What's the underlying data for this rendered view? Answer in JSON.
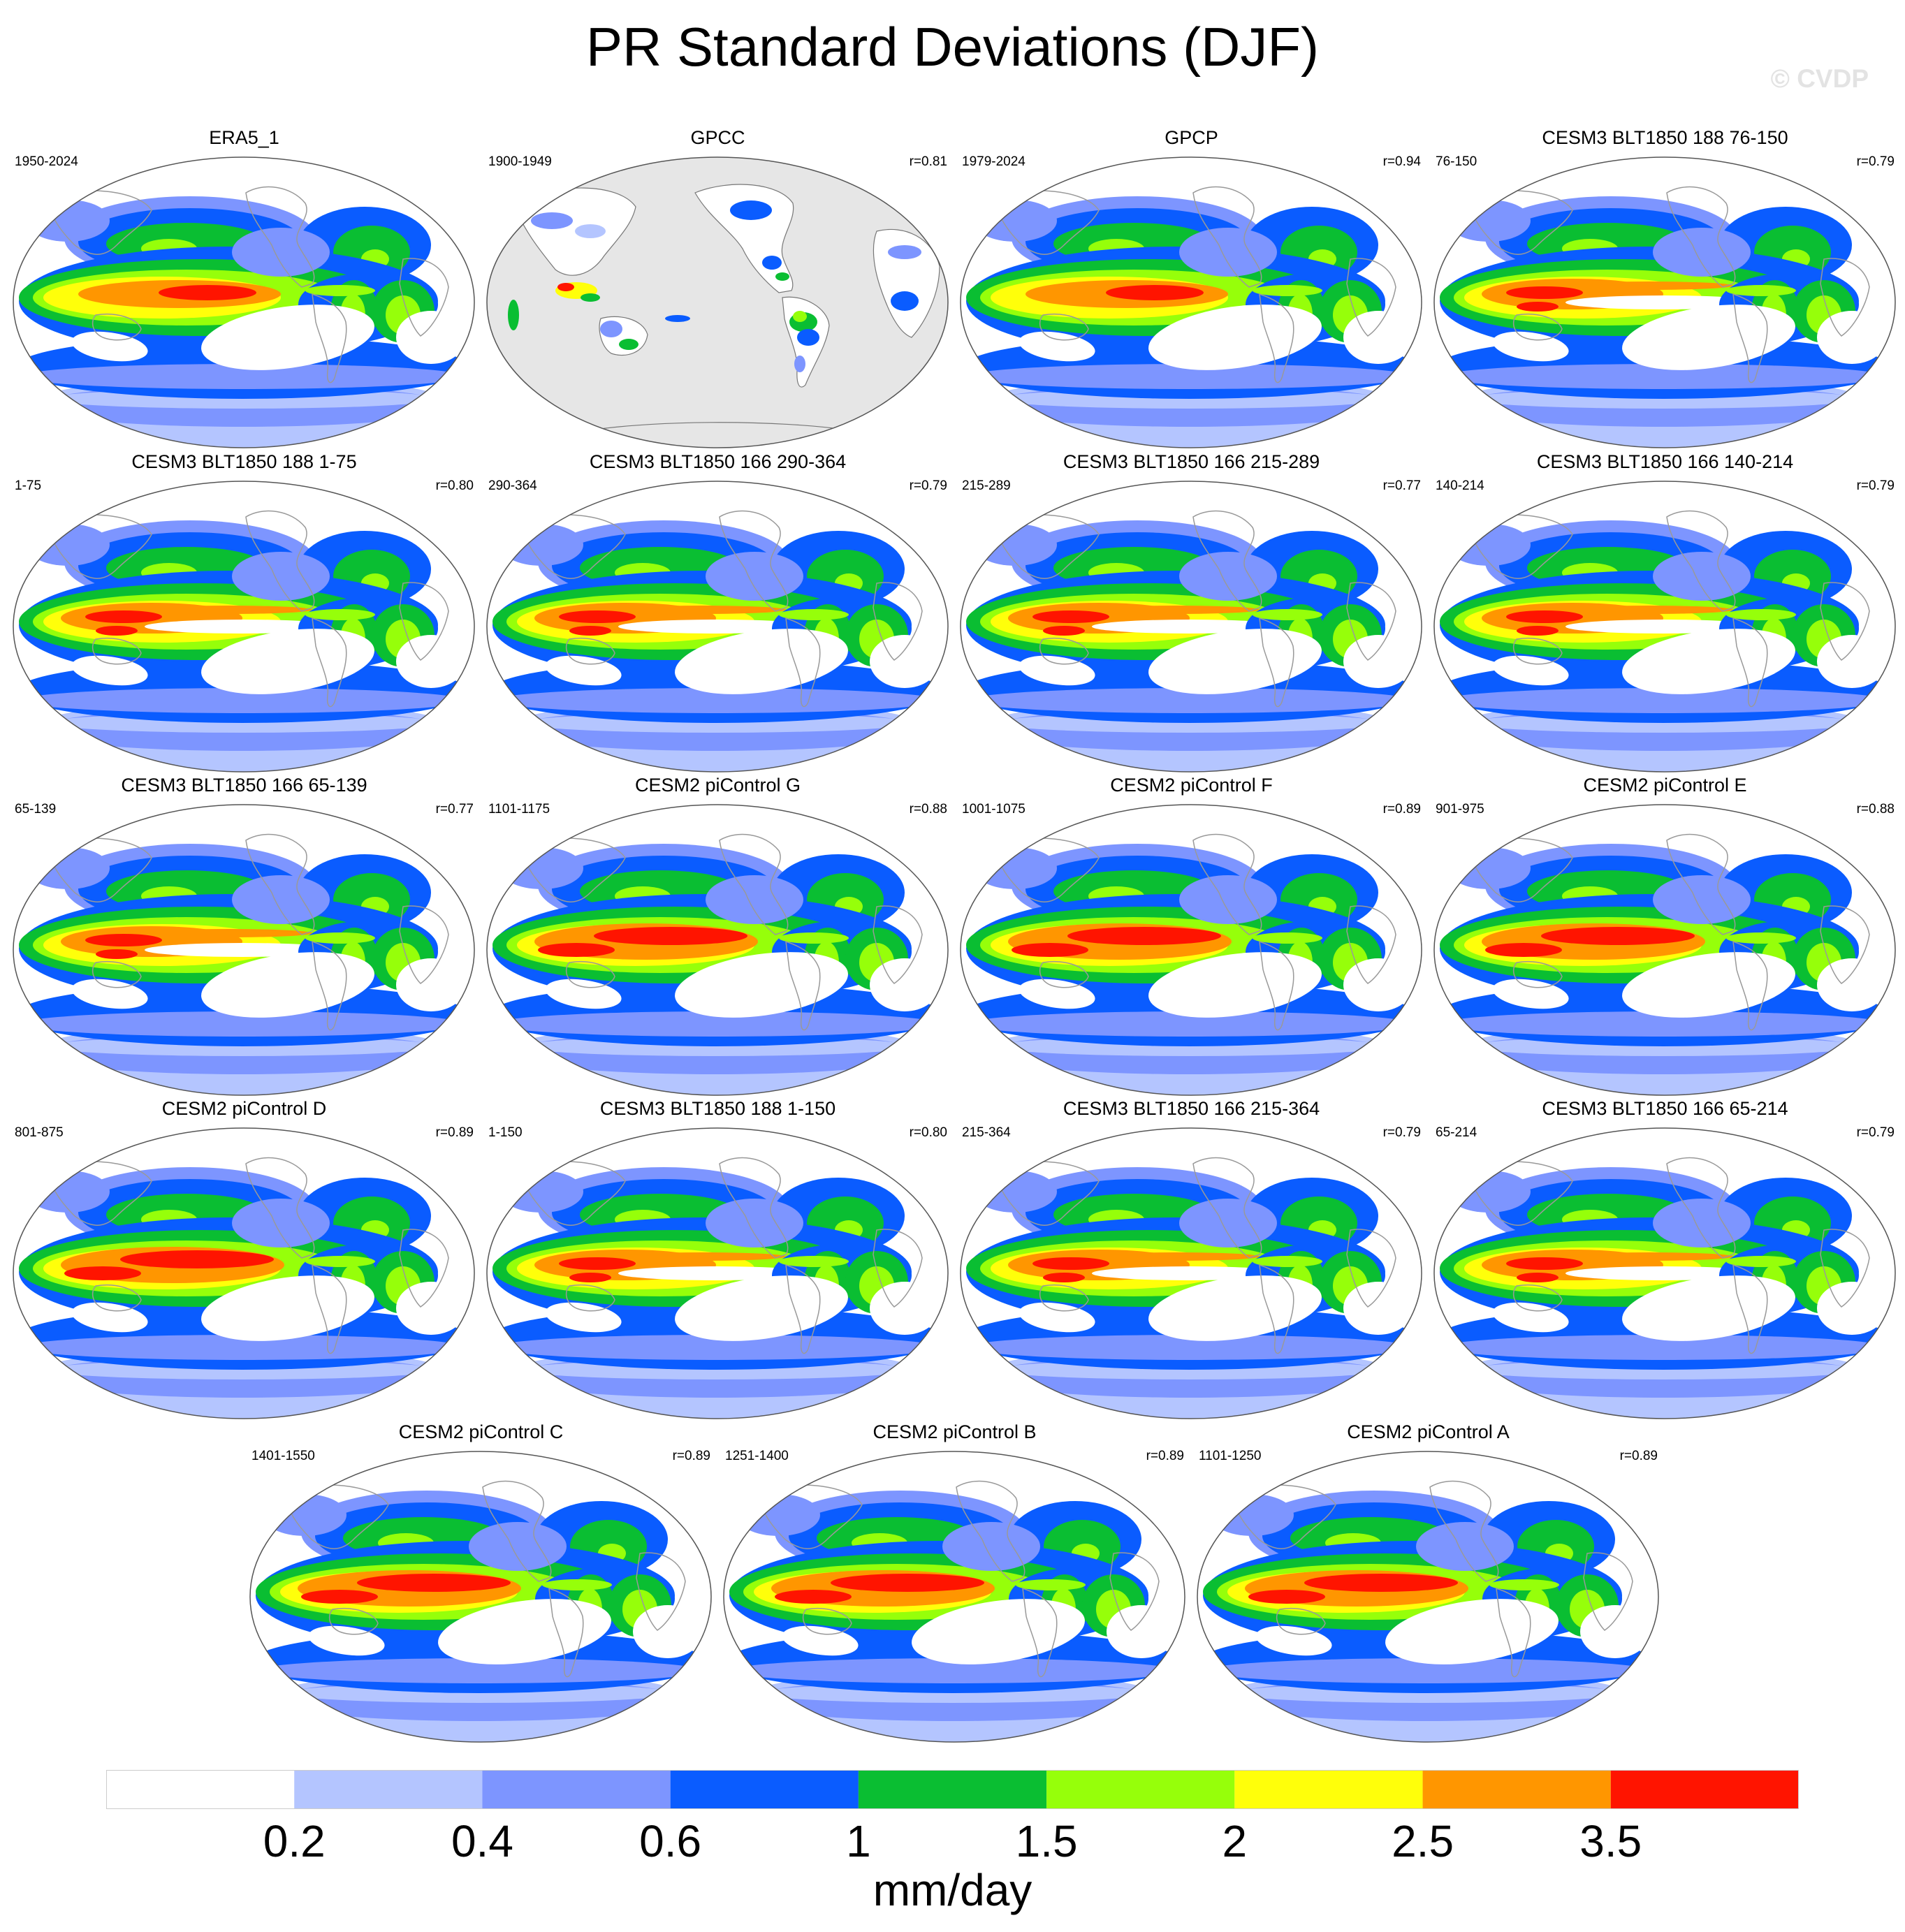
{
  "title": "PR Standard Deviations (DJF)",
  "watermark": "© CVDP",
  "units": "mm/day",
  "colorbar": {
    "labels": [
      "0.2",
      "0.4",
      "0.6",
      "1",
      "1.5",
      "2",
      "2.5",
      "3.5"
    ],
    "colors": [
      "#ffffff",
      "#b4c5ff",
      "#7d95ff",
      "#0a5cff",
      "#0abe32",
      "#96ff0a",
      "#ffff0a",
      "#ff9600",
      "#ff1400"
    ]
  },
  "panels": [
    {
      "title": "ERA5_1",
      "years": "1950-2024",
      "r": "",
      "style": "obs"
    },
    {
      "title": "GPCC",
      "years": "1900-1949",
      "r": "r=0.81",
      "style": "land"
    },
    {
      "title": "GPCP",
      "years": "1979-2024",
      "r": "r=0.94",
      "style": "obs"
    },
    {
      "title": "CESM3 BLT1850 188 76-150",
      "years": "76-150",
      "r": "r=0.79",
      "style": "cesm3"
    },
    {
      "title": "CESM3 BLT1850 188 1-75",
      "years": "1-75",
      "r": "r=0.80",
      "style": "cesm3"
    },
    {
      "title": "CESM3 BLT1850 166 290-364",
      "years": "290-364",
      "r": "r=0.79",
      "style": "cesm3"
    },
    {
      "title": "CESM3 BLT1850 166 215-289",
      "years": "215-289",
      "r": "r=0.77",
      "style": "cesm3"
    },
    {
      "title": "CESM3 BLT1850 166 140-214",
      "years": "140-214",
      "r": "r=0.79",
      "style": "cesm3"
    },
    {
      "title": "CESM3 BLT1850 166 65-139",
      "years": "65-139",
      "r": "r=0.77",
      "style": "cesm3"
    },
    {
      "title": "CESM2 piControl G",
      "years": "1101-1175",
      "r": "r=0.88",
      "style": "cesm2"
    },
    {
      "title": "CESM2 piControl F",
      "years": "1001-1075",
      "r": "r=0.89",
      "style": "cesm2"
    },
    {
      "title": "CESM2 piControl E",
      "years": "901-975",
      "r": "r=0.88",
      "style": "cesm2"
    },
    {
      "title": "CESM2 piControl D",
      "years": "801-875",
      "r": "r=0.89",
      "style": "cesm2"
    },
    {
      "title": "CESM3 BLT1850 188 1-150",
      "years": "1-150",
      "r": "r=0.80",
      "style": "cesm3"
    },
    {
      "title": "CESM3 BLT1850 166 215-364",
      "years": "215-364",
      "r": "r=0.79",
      "style": "cesm3"
    },
    {
      "title": "CESM3 BLT1850 166 65-214",
      "years": "65-214",
      "r": "r=0.79",
      "style": "cesm3"
    },
    {
      "title": "CESM2 piControl C",
      "years": "1401-1550",
      "r": "r=0.89",
      "style": "cesm2"
    },
    {
      "title": "CESM2 piControl B",
      "years": "1251-1400",
      "r": "r=0.89",
      "style": "cesm2"
    },
    {
      "title": "CESM2 piControl A",
      "years": "1101-1250",
      "r": "r=0.89",
      "style": "cesm2"
    }
  ]
}
